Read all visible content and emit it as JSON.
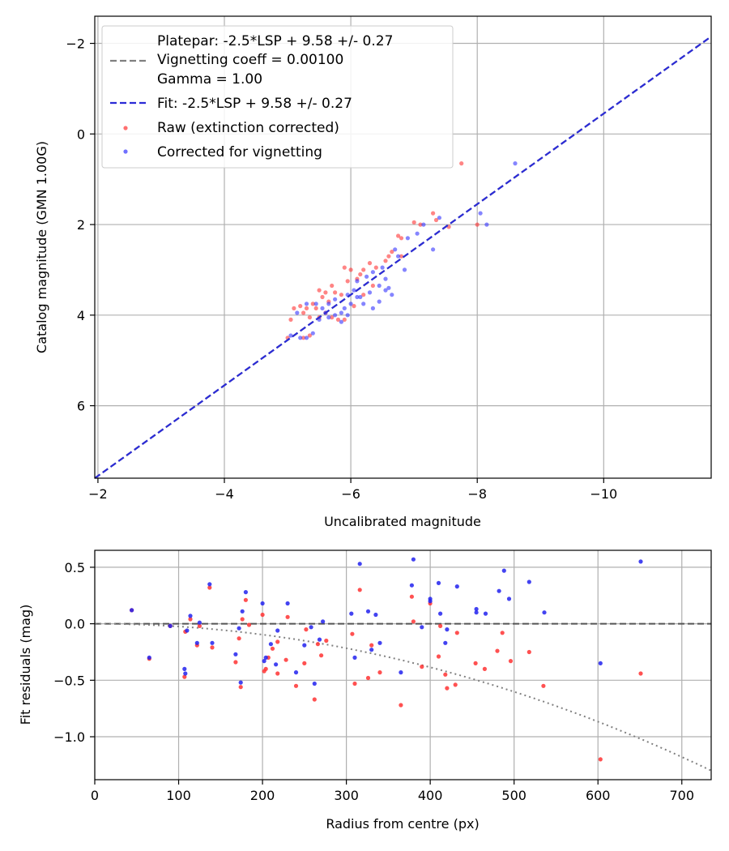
{
  "chart_data": [
    {
      "type": "scatter",
      "xlabel": "Uncalibrated magnitude",
      "ylabel": "Catalog magnitude (GMN 1.00G)",
      "xlim": [
        -1.95,
        -11.7
      ],
      "ylim": [
        7.6,
        -2.6
      ],
      "xticks": [
        -2,
        -4,
        -6,
        -8,
        -10
      ],
      "yticks": [
        -2,
        0,
        2,
        4,
        6
      ],
      "xtick_labels": [
        "−2",
        "−4",
        "−6",
        "−8",
        "−10"
      ],
      "ytick_labels": [
        "−2",
        "0",
        "2",
        "4",
        "6"
      ],
      "grid": true,
      "legend_position": "upper-left",
      "lines": [
        {
          "name": "platepar",
          "label_lines": [
            "Platepar: -2.5*LSP + 9.58 +/- 0.27",
            "Vignetting coeff = 0.00100",
            "Gamma = 1.00"
          ],
          "color": "#808080",
          "style": "dashed",
          "slope_over_LSP": -2.5,
          "intercept": 9.58,
          "x_range": [
            -1.95,
            -11.7
          ]
        },
        {
          "name": "fit",
          "label": "Fit: -2.5*LSP + 9.58 +/- 0.27",
          "color": "#2b2bd6",
          "style": "dashed",
          "slope_over_LSP": -2.5,
          "intercept": 9.58,
          "x_range": [
            -1.95,
            -11.7
          ]
        }
      ],
      "series": [
        {
          "name": "Raw (extinction corrected)",
          "color": "#ff3333",
          "points": [
            [
              -7.75,
              0.65
            ],
            [
              -8.0,
              2.0
            ],
            [
              -7.55,
              2.05
            ],
            [
              -7.3,
              1.75
            ],
            [
              -7.35,
              1.9
            ],
            [
              -7.0,
              1.95
            ],
            [
              -7.1,
              2.0
            ],
            [
              -6.8,
              2.3
            ],
            [
              -6.75,
              2.25
            ],
            [
              -6.65,
              2.6
            ],
            [
              -6.6,
              2.7
            ],
            [
              -6.55,
              2.8
            ],
            [
              -6.8,
              2.7
            ],
            [
              -6.3,
              2.85
            ],
            [
              -6.4,
              2.95
            ],
            [
              -6.2,
              3.0
            ],
            [
              -6.15,
              3.1
            ],
            [
              -6.0,
              3.0
            ],
            [
              -5.9,
              2.95
            ],
            [
              -6.1,
              3.2
            ],
            [
              -5.95,
              3.25
            ],
            [
              -5.7,
              3.35
            ],
            [
              -5.75,
              3.5
            ],
            [
              -5.85,
              3.55
            ],
            [
              -5.6,
              3.5
            ],
            [
              -5.5,
              3.45
            ],
            [
              -5.55,
              3.6
            ],
            [
              -5.65,
              3.7
            ],
            [
              -5.4,
              3.75
            ],
            [
              -5.45,
              3.85
            ],
            [
              -5.3,
              3.85
            ],
            [
              -5.25,
              3.95
            ],
            [
              -5.2,
              3.8
            ],
            [
              -5.1,
              3.85
            ],
            [
              -5.6,
              3.95
            ],
            [
              -5.7,
              4.05
            ],
            [
              -5.8,
              4.1
            ],
            [
              -5.9,
              4.1
            ],
            [
              -5.35,
              4.05
            ],
            [
              -5.05,
              4.1
            ],
            [
              -5.0,
              4.5
            ],
            [
              -5.25,
              4.5
            ],
            [
              -5.35,
              4.45
            ],
            [
              -5.5,
              4.05
            ],
            [
              -6.05,
              3.8
            ],
            [
              -6.2,
              3.55
            ],
            [
              -6.35,
              3.35
            ]
          ]
        },
        {
          "name": "Corrected for vignetting",
          "color": "#3333ff",
          "points": [
            [
              -8.6,
              0.65
            ],
            [
              -8.15,
              2.0
            ],
            [
              -8.05,
              1.75
            ],
            [
              -7.4,
              1.85
            ],
            [
              -7.15,
              2.0
            ],
            [
              -7.05,
              2.2
            ],
            [
              -7.3,
              2.55
            ],
            [
              -6.9,
              2.3
            ],
            [
              -6.85,
              3.0
            ],
            [
              -6.7,
              2.55
            ],
            [
              -6.75,
              2.7
            ],
            [
              -6.5,
              2.95
            ],
            [
              -6.55,
              3.2
            ],
            [
              -6.45,
              3.35
            ],
            [
              -6.35,
              3.05
            ],
            [
              -6.25,
              3.15
            ],
            [
              -6.1,
              3.25
            ],
            [
              -6.05,
              3.45
            ],
            [
              -5.95,
              3.55
            ],
            [
              -6.15,
              3.6
            ],
            [
              -6.3,
              3.5
            ],
            [
              -6.6,
              3.4
            ],
            [
              -6.45,
              3.7
            ],
            [
              -6.2,
              3.75
            ],
            [
              -6.0,
              3.75
            ],
            [
              -5.9,
              3.85
            ],
            [
              -5.85,
              3.95
            ],
            [
              -5.75,
              3.65
            ],
            [
              -5.65,
              3.75
            ],
            [
              -5.55,
              3.85
            ],
            [
              -5.45,
              3.75
            ],
            [
              -5.6,
              3.95
            ],
            [
              -5.65,
              4.05
            ],
            [
              -5.75,
              4.0
            ],
            [
              -5.85,
              4.15
            ],
            [
              -5.95,
              4.0
            ],
            [
              -5.3,
              3.75
            ],
            [
              -5.15,
              3.95
            ],
            [
              -5.05,
              4.45
            ],
            [
              -5.2,
              4.5
            ],
            [
              -5.3,
              4.5
            ],
            [
              -5.4,
              4.4
            ],
            [
              -5.5,
              4.1
            ],
            [
              -6.1,
              3.6
            ],
            [
              -6.35,
              3.85
            ],
            [
              -6.65,
              3.55
            ],
            [
              -6.55,
              3.45
            ]
          ]
        }
      ]
    },
    {
      "type": "scatter",
      "xlabel": "Radius from centre (px)",
      "ylabel": "Fit residuals (mag)",
      "xlim": [
        0,
        735
      ],
      "ylim": [
        -1.38,
        0.65
      ],
      "xticks": [
        0,
        100,
        200,
        300,
        400,
        500,
        600,
        700
      ],
      "yticks": [
        -1.0,
        -0.5,
        0.0,
        0.5
      ],
      "xtick_labels": [
        "0",
        "100",
        "200",
        "300",
        "400",
        "500",
        "600",
        "700"
      ],
      "ytick_labels": [
        "−1.0",
        "−0.5",
        "0.0",
        "0.5"
      ],
      "grid": true,
      "zero_line": {
        "y": 0,
        "color": "#555555",
        "style": "dashed"
      },
      "vignetting_curve": {
        "color": "#808080",
        "style": "dotted",
        "coeff": 0.001,
        "gamma": 1.0
      },
      "series": [
        {
          "name": "Raw (extinction corrected)",
          "color": "#ff3333",
          "points": [
            [
              44,
              0.12
            ],
            [
              65,
              -0.31
            ],
            [
              90,
              -0.02
            ],
            [
              107,
              -0.47
            ],
            [
              108,
              -0.07
            ],
            [
              114,
              0.04
            ],
            [
              122,
              -0.19
            ],
            [
              125,
              -0.02
            ],
            [
              137,
              0.32
            ],
            [
              140,
              -0.21
            ],
            [
              168,
              -0.34
            ],
            [
              172,
              -0.13
            ],
            [
              174,
              -0.56
            ],
            [
              176,
              0.04
            ],
            [
              180,
              0.21
            ],
            [
              184,
              -0.01
            ],
            [
              200,
              0.08
            ],
            [
              202,
              -0.42
            ],
            [
              204,
              -0.4
            ],
            [
              207,
              -0.3
            ],
            [
              212,
              -0.22
            ],
            [
              218,
              -0.16
            ],
            [
              218,
              -0.44
            ],
            [
              228,
              -0.32
            ],
            [
              230,
              0.06
            ],
            [
              240,
              -0.55
            ],
            [
              250,
              -0.35
            ],
            [
              252,
              -0.05
            ],
            [
              262,
              -0.67
            ],
            [
              266,
              -0.18
            ],
            [
              270,
              -0.28
            ],
            [
              276,
              -0.15
            ],
            [
              307,
              -0.09
            ],
            [
              310,
              -0.53
            ],
            [
              316,
              0.3
            ],
            [
              326,
              -0.48
            ],
            [
              330,
              -0.19
            ],
            [
              340,
              -0.43
            ],
            [
              365,
              -0.72
            ],
            [
              378,
              0.24
            ],
            [
              380,
              0.02
            ],
            [
              390,
              -0.38
            ],
            [
              400,
              0.18
            ],
            [
              410,
              -0.29
            ],
            [
              412,
              -0.02
            ],
            [
              418,
              -0.45
            ],
            [
              420,
              -0.57
            ],
            [
              430,
              -0.54
            ],
            [
              432,
              -0.08
            ],
            [
              454,
              -0.35
            ],
            [
              465,
              -0.4
            ],
            [
              480,
              -0.24
            ],
            [
              486,
              -0.08
            ],
            [
              496,
              -0.33
            ],
            [
              518,
              -0.25
            ],
            [
              535,
              -0.55
            ],
            [
              603,
              -1.2
            ],
            [
              651,
              -0.44
            ]
          ]
        },
        {
          "name": "Corrected for vignetting",
          "color": "#2222ee",
          "points": [
            [
              44,
              0.12
            ],
            [
              65,
              -0.3
            ],
            [
              90,
              -0.02
            ],
            [
              107,
              -0.4
            ],
            [
              108,
              -0.44
            ],
            [
              110,
              -0.06
            ],
            [
              114,
              0.07
            ],
            [
              122,
              -0.17
            ],
            [
              125,
              0.01
            ],
            [
              137,
              0.35
            ],
            [
              140,
              -0.17
            ],
            [
              168,
              -0.27
            ],
            [
              172,
              -0.04
            ],
            [
              174,
              -0.52
            ],
            [
              176,
              0.11
            ],
            [
              180,
              0.28
            ],
            [
              200,
              0.18
            ],
            [
              202,
              -0.33
            ],
            [
              204,
              -0.3
            ],
            [
              210,
              -0.18
            ],
            [
              218,
              -0.06
            ],
            [
              216,
              -0.36
            ],
            [
              230,
              0.18
            ],
            [
              240,
              -0.43
            ],
            [
              250,
              -0.19
            ],
            [
              258,
              -0.03
            ],
            [
              262,
              -0.53
            ],
            [
              268,
              -0.14
            ],
            [
              272,
              0.02
            ],
            [
              306,
              0.09
            ],
            [
              310,
              -0.3
            ],
            [
              316,
              0.53
            ],
            [
              326,
              0.11
            ],
            [
              330,
              -0.23
            ],
            [
              340,
              -0.17
            ],
            [
              335,
              0.08
            ],
            [
              365,
              -0.43
            ],
            [
              378,
              0.34
            ],
            [
              380,
              0.57
            ],
            [
              390,
              -0.03
            ],
            [
              400,
              0.22
            ],
            [
              400,
              0.2
            ],
            [
              412,
              0.09
            ],
            [
              410,
              0.36
            ],
            [
              418,
              -0.17
            ],
            [
              420,
              -0.05
            ],
            [
              432,
              0.33
            ],
            [
              455,
              0.1
            ],
            [
              455,
              0.13
            ],
            [
              466,
              0.09
            ],
            [
              482,
              0.29
            ],
            [
              488,
              0.47
            ],
            [
              494,
              0.22
            ],
            [
              518,
              0.37
            ],
            [
              536,
              0.1
            ],
            [
              603,
              -0.35
            ],
            [
              651,
              0.55
            ]
          ]
        }
      ]
    }
  ]
}
